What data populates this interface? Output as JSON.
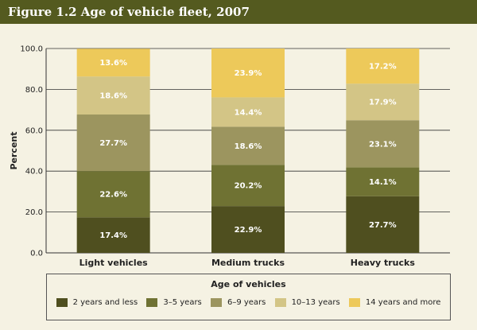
{
  "title": "Figure 1.2  Age of vehicle fleet, 2007",
  "chart_data": {
    "type": "bar",
    "stacked": true,
    "categories": [
      "Light vehicles",
      "Medium trucks",
      "Heavy trucks"
    ],
    "series": [
      {
        "name": "2 years and less",
        "color": "#4f4f1f",
        "values": [
          17.4,
          22.9,
          27.7
        ]
      },
      {
        "name": "3–5 years",
        "color": "#6f7233",
        "values": [
          22.6,
          20.2,
          14.1
        ]
      },
      {
        "name": "6–9 years",
        "color": "#9c955f",
        "values": [
          27.7,
          18.6,
          23.1
        ]
      },
      {
        "name": "10–13 years",
        "color": "#d3c586",
        "values": [
          18.6,
          14.4,
          17.9
        ]
      },
      {
        "name": "14 years and more",
        "color": "#edc95a",
        "values": [
          13.6,
          23.9,
          17.2
        ]
      }
    ],
    "data_labels": [
      [
        "17.4%",
        "22.9%",
        "27.7%"
      ],
      [
        "22.6%",
        "20.2%",
        "14.1%"
      ],
      [
        "27.7%",
        "18.6%",
        "23.1%"
      ],
      [
        "18.6%",
        "14.4%",
        "17.9%"
      ],
      [
        "13.6%",
        "23.9%",
        "17.2%"
      ]
    ],
    "ylabel": "Percent",
    "ylim": [
      0,
      100
    ],
    "yticks": [
      0,
      20,
      40,
      60,
      80,
      100
    ],
    "ytick_labels": [
      "0.0",
      "20.0",
      "40.0",
      "60.0",
      "80.0",
      "100.0"
    ],
    "grid": true,
    "legend_title": "Age of vehicles",
    "legend_position": "bottom"
  }
}
